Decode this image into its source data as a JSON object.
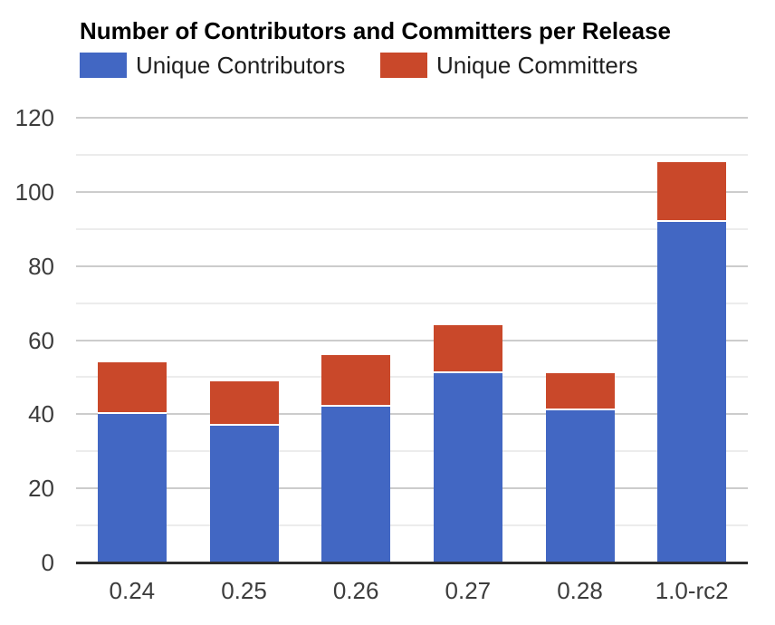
{
  "chart": {
    "title": "Number of Contributors and Committers per Release"
  },
  "chart_data": {
    "type": "bar",
    "stacked": true,
    "title": "Number of Contributors and Committers per Release",
    "categories": [
      "0.24",
      "0.25",
      "0.26",
      "0.27",
      "0.28",
      "1.0-rc2"
    ],
    "series": [
      {
        "name": "Unique Contributors",
        "color": "#4267C3",
        "values": [
          40,
          37,
          42,
          51,
          41,
          92
        ]
      },
      {
        "name": "Unique Committers",
        "color": "#C9482A",
        "values": [
          14,
          12,
          14,
          13,
          10,
          16
        ]
      }
    ],
    "stacked_totals": [
      54,
      49,
      56,
      64,
      51,
      108
    ],
    "xlabel": "",
    "ylabel": "",
    "ylim": [
      0,
      120
    ],
    "yticks": [
      0,
      20,
      40,
      60,
      80,
      100,
      120
    ],
    "minor_gridline_step": 10,
    "grid": true,
    "legend_position": "top-left"
  },
  "colors": {
    "axis_line": "#2e2e2e",
    "major_gridline": "#cccccc",
    "minor_gridline": "#ececec",
    "tick_text": "#3c3c3c",
    "legend_text": "#1f1f1f",
    "title_text": "#000000",
    "background": "#ffffff"
  }
}
